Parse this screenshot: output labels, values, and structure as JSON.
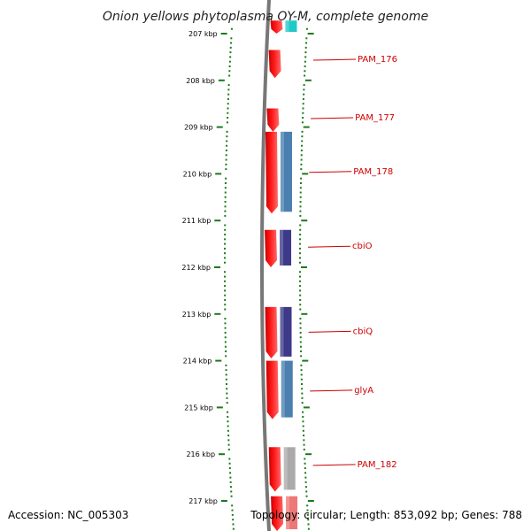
{
  "title": "Onion yellows phytoplasma OY-M, complete genome",
  "footer": {
    "accession": "Accession: NC_005303",
    "topology": "Topology: circular; Length: 853,092 bp; Genes: 788"
  },
  "colors": {
    "scale": "#1a7a1a",
    "gene_forward": "#ff0000",
    "label": "#cc0000",
    "backbone": "#777777"
  },
  "ticks": [
    {
      "kbp": 207,
      "label": "207 kbp"
    },
    {
      "kbp": 208,
      "label": "208 kbp"
    },
    {
      "kbp": 209,
      "label": "209 kbp"
    },
    {
      "kbp": 210,
      "label": "210 kbp"
    },
    {
      "kbp": 211,
      "label": "211 kbp"
    },
    {
      "kbp": 212,
      "label": "212 kbp"
    },
    {
      "kbp": 213,
      "label": "213 kbp"
    },
    {
      "kbp": 214,
      "label": "214 kbp"
    },
    {
      "kbp": 215,
      "label": "215 kbp"
    },
    {
      "kbp": 216,
      "label": "216 kbp"
    },
    {
      "kbp": 217,
      "label": "217 kbp"
    }
  ],
  "genes": [
    {
      "start": 206.72,
      "end": 207.0,
      "cog_color": "#20c8c8"
    },
    {
      "start": 207.35,
      "end": 207.95,
      "label": "PAM_176",
      "label_kbp": 207.55
    },
    {
      "start": 208.6,
      "end": 209.1,
      "label": "PAM_177",
      "label_kbp": 208.8
    },
    {
      "start": 209.1,
      "end": 210.85,
      "label": "PAM_178",
      "label_kbp": 209.95,
      "cog_color": "#4a7fb0"
    },
    {
      "start": 211.2,
      "end": 212.0,
      "label": "cbiO",
      "label_kbp": 211.55,
      "cog_color": "#3d3a8a"
    },
    {
      "start": 212.85,
      "end": 213.95,
      "label": "cbiQ",
      "label_kbp": 213.37,
      "cog_color": "#3d3a8a"
    },
    {
      "start": 214.0,
      "end": 215.25,
      "label": "glyA",
      "label_kbp": 214.63,
      "cog_color": "#4a7fb0"
    },
    {
      "start": 215.85,
      "end": 216.8,
      "label": "PAM_182",
      "label_kbp": 216.22,
      "cog_color": "#aaaaaa"
    },
    {
      "start": 216.9,
      "end": 217.7,
      "cog_color": "#ee7777"
    }
  ]
}
